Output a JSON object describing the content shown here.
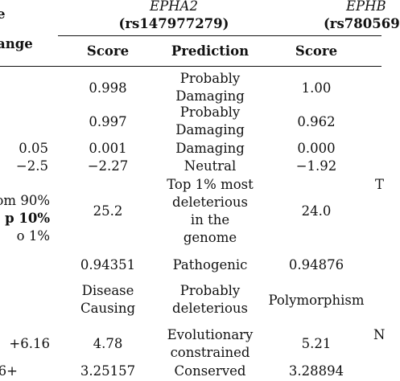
{
  "table": {
    "left_cut": {
      "range_header": "ange",
      "header_line0": "e",
      "ranges": [
        "0.05",
        "−2.5",
        "om 90%",
        "p 10%",
        "o 1%",
        "+6.16",
        "6+"
      ]
    },
    "epha2": {
      "gene": "EPHA2",
      "rsid": "(rs147977279)",
      "score_header": "Score",
      "prediction_header": "Prediction"
    },
    "ephb_cut": {
      "gene": "EPHB",
      "rsid": "(rs780569",
      "score_header": "Score",
      "right_fragments": [
        "T",
        "N"
      ]
    },
    "rows": [
      {
        "score": "0.998",
        "prediction_lines": [
          "Probably",
          "Damaging"
        ],
        "score_b": "1.00"
      },
      {
        "score": "0.997",
        "prediction_lines": [
          "Probably",
          "Damaging"
        ],
        "score_b": "0.962"
      },
      {
        "score": "0.001",
        "prediction_lines": [
          "Damaging"
        ],
        "score_b": "0.000"
      },
      {
        "score": "−2.27",
        "prediction_lines": [
          "Neutral"
        ],
        "score_b": "−1.92"
      },
      {
        "score": "25.2",
        "prediction_lines": [
          "Top 1% most",
          "deleterious",
          "in the",
          "genome"
        ],
        "score_b": "24.0"
      },
      {
        "score": "0.94351",
        "prediction_lines": [
          "Pathogenic"
        ],
        "score_b": "0.94876"
      },
      {
        "score_lines": [
          "Disease",
          "Causing"
        ],
        "prediction_lines": [
          "Probably",
          "deleterious"
        ],
        "score_b": "Polymorphism"
      },
      {
        "score": "4.78",
        "prediction_lines": [
          "Evolutionary",
          "constrained"
        ],
        "score_b": "5.21"
      },
      {
        "score": "3.25157",
        "prediction_lines": [
          "Conserved"
        ],
        "score_b": "3.28894"
      }
    ]
  }
}
